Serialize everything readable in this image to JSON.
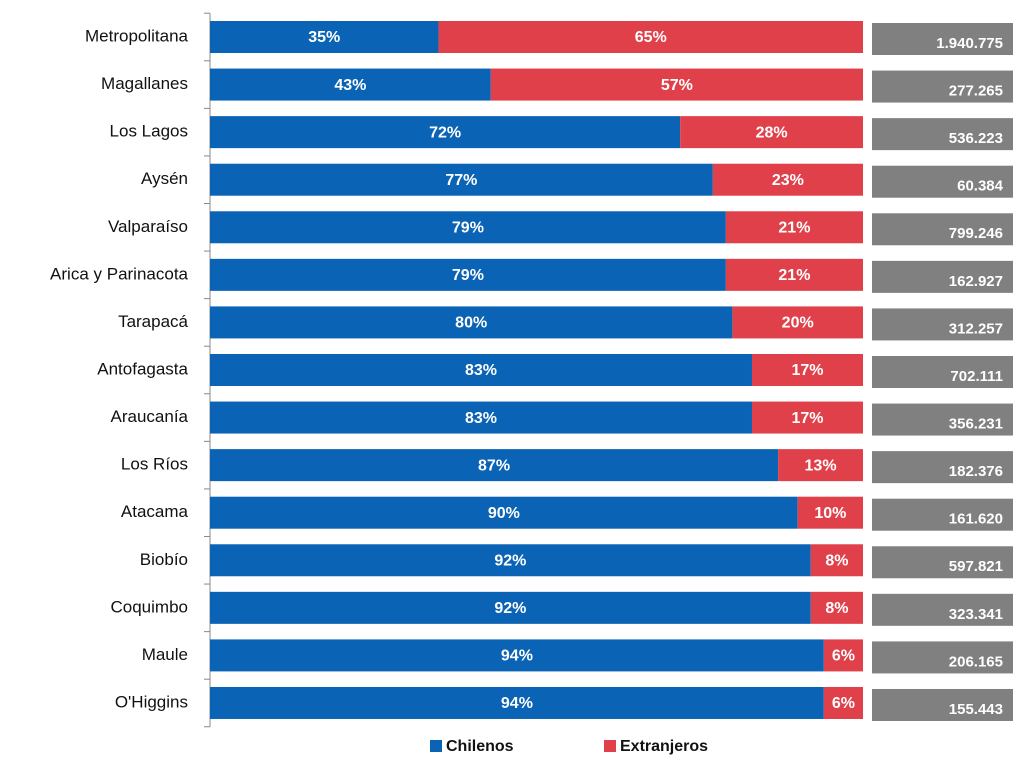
{
  "chart_data": {
    "type": "stacked_bar_horizontal",
    "categories": [
      "Metropolitana",
      "Magallanes",
      "Los Lagos",
      "Aysén",
      "Valparaíso",
      "Arica y Parinacota",
      "Tarapacá",
      "Antofagasta",
      "Araucanía",
      "Los Ríos",
      "Atacama",
      "Biobío",
      "Coquimbo",
      "Maule",
      "O'Higgins"
    ],
    "series": [
      {
        "name": "Chilenos",
        "color": "#0a63b5",
        "values": [
          35,
          43,
          72,
          77,
          79,
          79,
          80,
          83,
          83,
          87,
          90,
          92,
          92,
          94,
          94
        ],
        "value_labels": [
          "35%",
          "43%",
          "72%",
          "77%",
          "79%",
          "79%",
          "80%",
          "83%",
          "83%",
          "87%",
          "90%",
          "92%",
          "92%",
          "94%",
          "94%"
        ]
      },
      {
        "name": "Extranjeros",
        "color": "#e0404a",
        "values": [
          65,
          57,
          28,
          23,
          21,
          21,
          20,
          17,
          17,
          13,
          10,
          8,
          8,
          6,
          6
        ],
        "value_labels": [
          "65%",
          "57%",
          "28%",
          "23%",
          "21%",
          "21%",
          "20%",
          "17%",
          "17%",
          "13%",
          "10%",
          "8%",
          "8%",
          "6%",
          "6%"
        ]
      }
    ],
    "totals": {
      "color": "#808080",
      "values": [
        1940775,
        277265,
        536223,
        60384,
        799246,
        162927,
        312257,
        702111,
        356231,
        182376,
        161620,
        597821,
        323341,
        206165,
        155443
      ],
      "value_labels": [
        "1.940.775",
        "277.265",
        "536.223",
        "60.384",
        "799.246",
        "162.927",
        "312.257",
        "702.111",
        "356.231",
        "182.376",
        "161.620",
        "597.821",
        "323.341",
        "206.165",
        "155.443"
      ]
    },
    "xlim": [
      0,
      100
    ],
    "legend": "bottom"
  }
}
